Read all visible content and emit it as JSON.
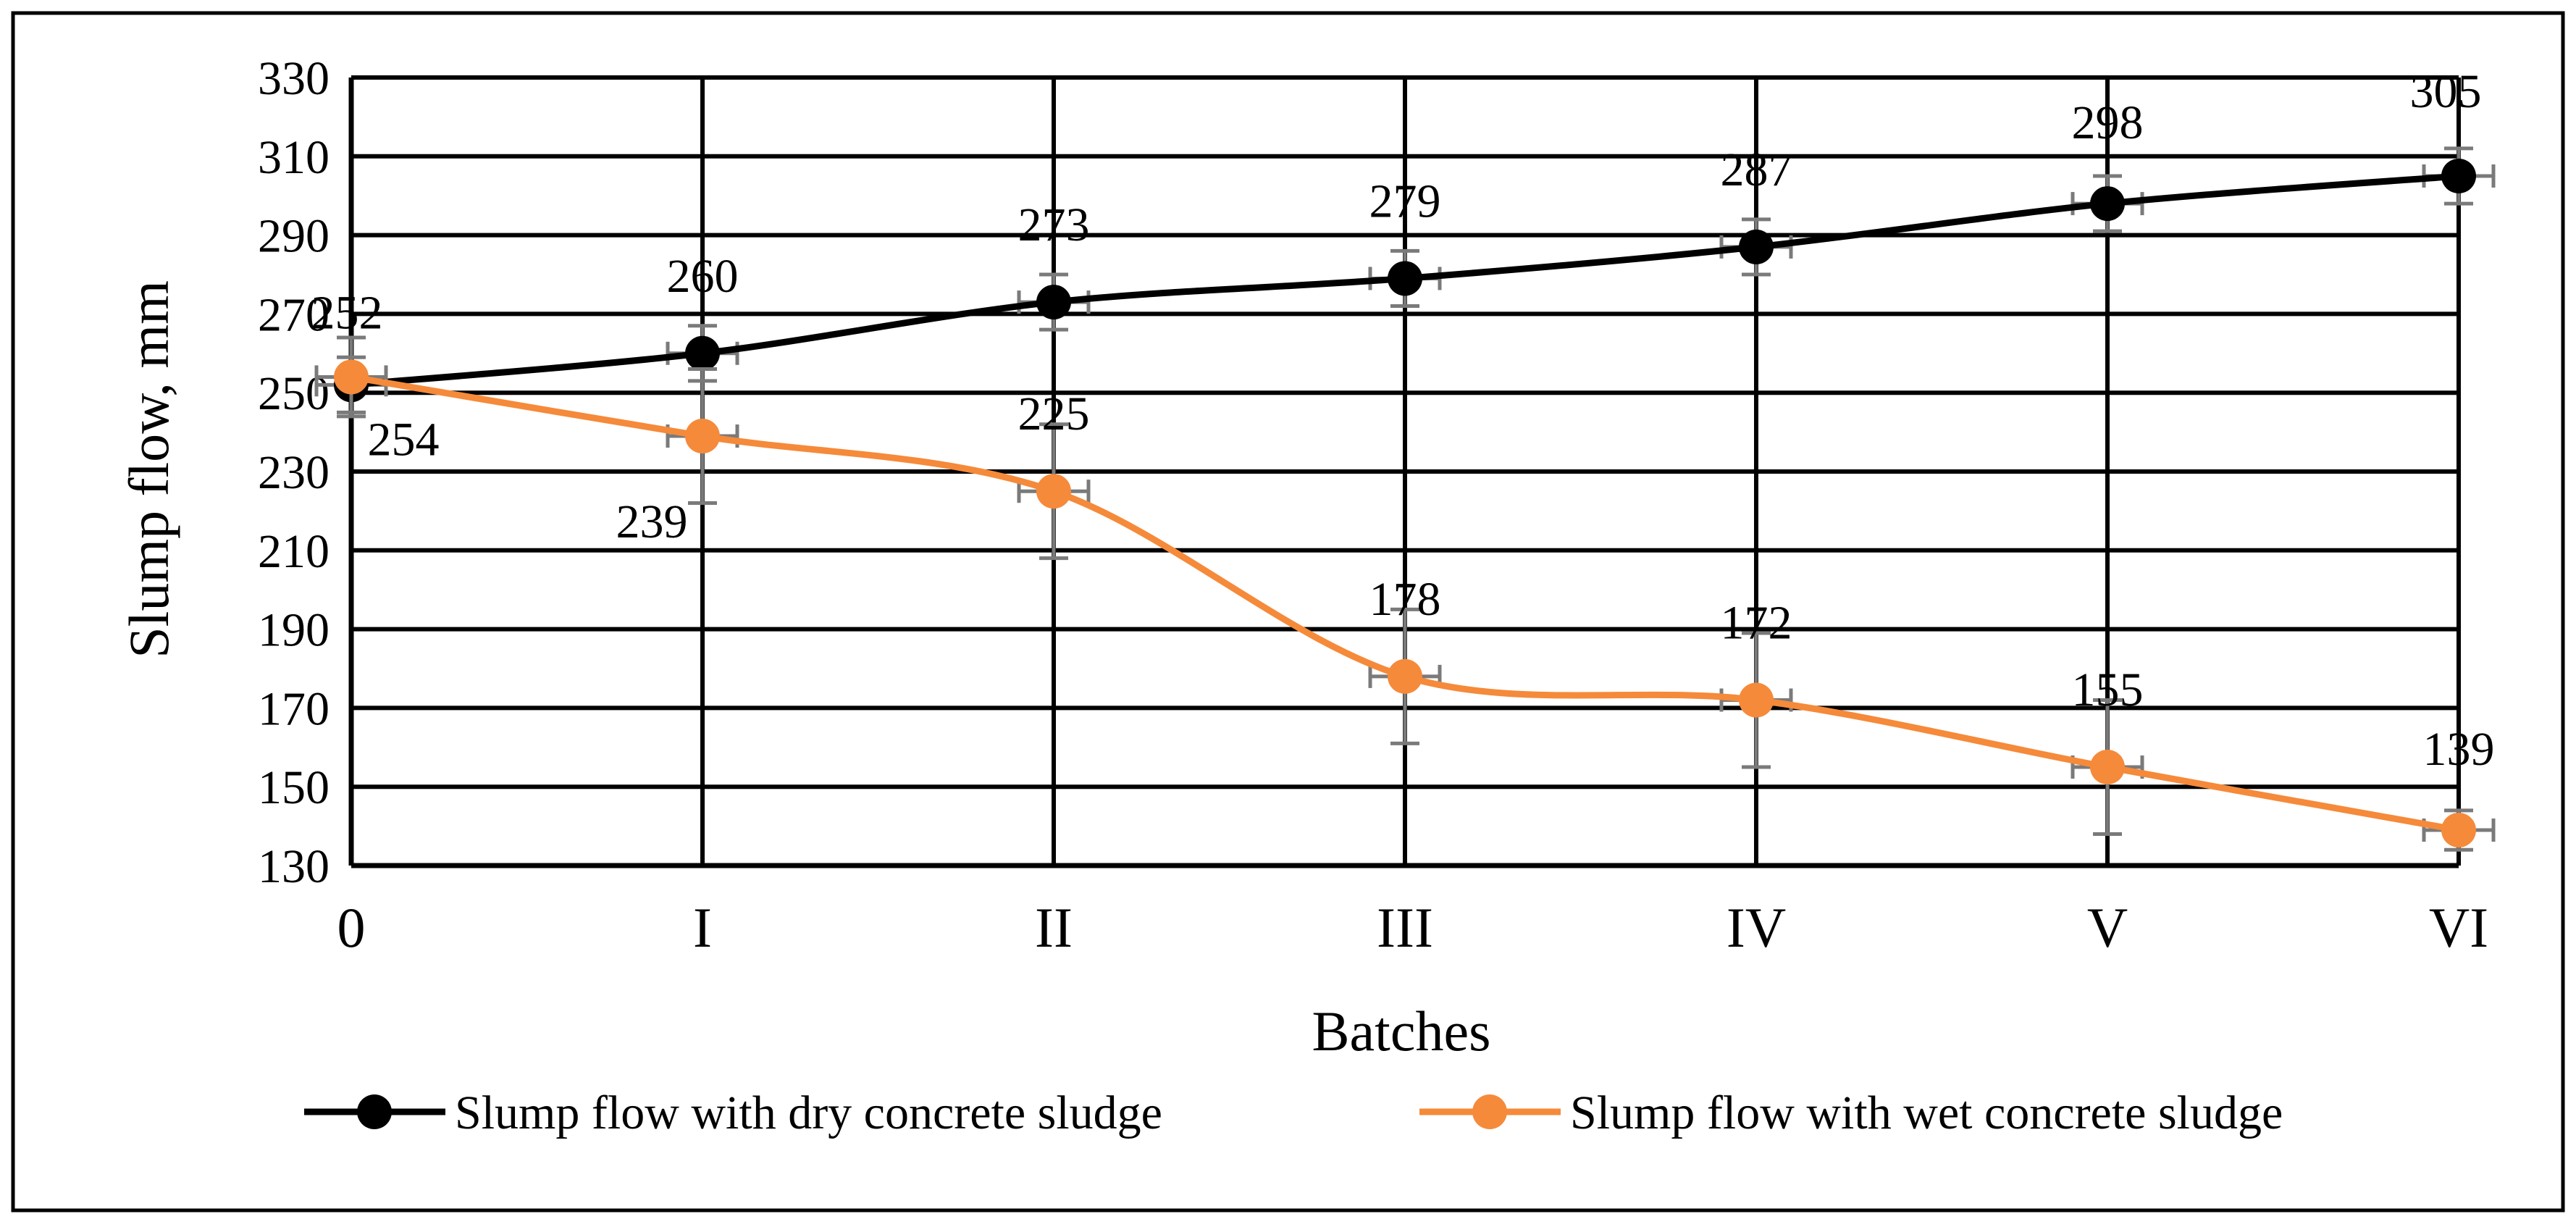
{
  "chart_data": {
    "type": "line",
    "title": "",
    "xlabel": "Batches",
    "ylabel": "Slump flow, mm",
    "categories": [
      "0",
      "I",
      "II",
      "III",
      "IV",
      "V",
      "VI"
    ],
    "ylim": [
      130,
      330
    ],
    "yticks": [
      130,
      150,
      170,
      190,
      210,
      230,
      250,
      270,
      290,
      310,
      330
    ],
    "grid": true,
    "legend_position": "bottom",
    "series": [
      {
        "name": "Slump flow with dry concrete sludge",
        "color": "#000000",
        "marker_color": "#000000",
        "values": [
          252,
          260,
          273,
          279,
          287,
          298,
          305
        ],
        "labels": [
          "252",
          "260",
          "273",
          "279",
          "287",
          "298",
          "305"
        ],
        "error": 7
      },
      {
        "name": "Slump flow with wet concrete sludge",
        "color": "#f58a3a",
        "marker_color": "#f58a3a",
        "values": [
          254,
          239,
          225,
          178,
          172,
          155,
          139
        ],
        "labels": [
          "254",
          "239",
          "225",
          "178",
          "172",
          "155",
          "139"
        ],
        "error": [
          10,
          17,
          17,
          17,
          17,
          17,
          5
        ]
      }
    ]
  }
}
